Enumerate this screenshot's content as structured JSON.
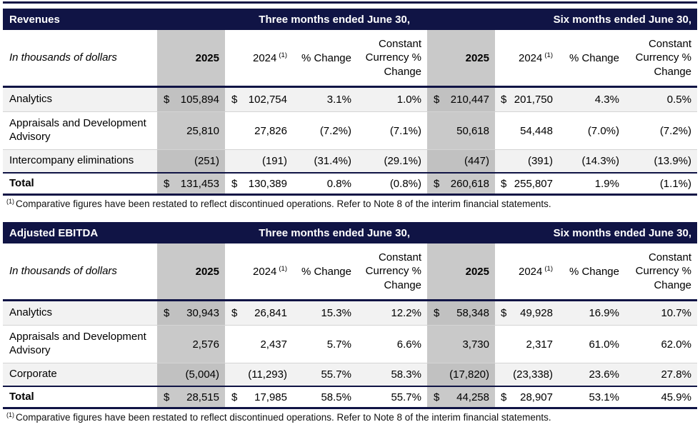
{
  "colors": {
    "header_navy": "#101445",
    "column_highlight_gray": "#c9c9c9",
    "row_stripe_gray": "#f2f2f2"
  },
  "tables": [
    {
      "title": "Revenues",
      "period1": "Three months ended June 30,",
      "period2": "Six months ended June 30,",
      "units_label": "In thousands of dollars",
      "col_2025": "2025",
      "col_2024": "2024",
      "col_sup": "(1)",
      "col_pct": "% Change",
      "col_cc": "Constant Currency % Change",
      "rows": [
        {
          "label": "Analytics",
          "cells": [
            {
              "cur": "$",
              "val": "105,894"
            },
            {
              "cur": "$",
              "val": "102,754"
            },
            {
              "val": "3.1%"
            },
            {
              "val": "1.0%"
            },
            {
              "cur": "$",
              "val": "210,447"
            },
            {
              "cur": "$",
              "val": "201,750"
            },
            {
              "val": "4.3%"
            },
            {
              "val": "0.5%"
            }
          ]
        },
        {
          "label": "Appraisals and Development Advisory",
          "cells": [
            {
              "val": "25,810"
            },
            {
              "val": "27,826"
            },
            {
              "val": "(7.2%)"
            },
            {
              "val": "(7.1%)"
            },
            {
              "val": "50,618"
            },
            {
              "val": "54,448"
            },
            {
              "val": "(7.0%)"
            },
            {
              "val": "(7.2%)"
            }
          ]
        },
        {
          "label": "Intercompany eliminations",
          "cells": [
            {
              "val": "(251)"
            },
            {
              "val": "(191)"
            },
            {
              "val": "(31.4%)"
            },
            {
              "val": "(29.1%)"
            },
            {
              "val": "(447)"
            },
            {
              "val": "(391)"
            },
            {
              "val": "(14.3%)"
            },
            {
              "val": "(13.9%)"
            }
          ]
        },
        {
          "label": "Total",
          "cells": [
            {
              "cur": "$",
              "val": "131,453"
            },
            {
              "cur": "$",
              "val": "130,389"
            },
            {
              "val": "0.8%"
            },
            {
              "val": "(0.8%)"
            },
            {
              "cur": "$",
              "val": "260,618"
            },
            {
              "cur": "$",
              "val": "255,807"
            },
            {
              "val": "1.9%"
            },
            {
              "val": "(1.1%)"
            }
          ]
        }
      ],
      "footnote_sup": "(1)",
      "footnote": "Comparative figures have been restated to reflect discontinued operations. Refer to Note 8 of the interim financial statements."
    },
    {
      "title": "Adjusted EBITDA",
      "period1": "Three months ended June 30,",
      "period2": "Six months ended June 30,",
      "units_label": "In thousands of dollars",
      "col_2025": "2025",
      "col_2024": "2024",
      "col_sup": "(1)",
      "col_pct": "% Change",
      "col_cc": "Constant Currency % Change",
      "rows": [
        {
          "label": "Analytics",
          "cells": [
            {
              "cur": "$",
              "val": "30,943"
            },
            {
              "cur": "$",
              "val": "26,841"
            },
            {
              "val": "15.3%"
            },
            {
              "val": "12.2%"
            },
            {
              "cur": "$",
              "val": "58,348"
            },
            {
              "cur": "$",
              "val": "49,928"
            },
            {
              "val": "16.9%"
            },
            {
              "val": "10.7%"
            }
          ]
        },
        {
          "label": "Appraisals and Development Advisory",
          "cells": [
            {
              "val": "2,576"
            },
            {
              "val": "2,437"
            },
            {
              "val": "5.7%"
            },
            {
              "val": "6.6%"
            },
            {
              "val": "3,730"
            },
            {
              "val": "2,317"
            },
            {
              "val": "61.0%"
            },
            {
              "val": "62.0%"
            }
          ]
        },
        {
          "label": "Corporate",
          "cells": [
            {
              "val": "(5,004)"
            },
            {
              "val": "(11,293)"
            },
            {
              "val": "55.7%"
            },
            {
              "val": "58.3%"
            },
            {
              "val": "(17,820)"
            },
            {
              "val": "(23,338)"
            },
            {
              "val": "23.6%"
            },
            {
              "val": "27.8%"
            }
          ]
        },
        {
          "label": "Total",
          "cells": [
            {
              "cur": "$",
              "val": "28,515"
            },
            {
              "cur": "$",
              "val": "17,985"
            },
            {
              "val": "58.5%"
            },
            {
              "val": "55.7%"
            },
            {
              "cur": "$",
              "val": "44,258"
            },
            {
              "cur": "$",
              "val": "28,907"
            },
            {
              "val": "53.1%"
            },
            {
              "val": "45.9%"
            }
          ]
        }
      ],
      "footnote_sup": "(1)",
      "footnote": "Comparative figures have been restated to reflect discontinued operations. Refer to Note 8 of the interim financial statements."
    }
  ]
}
